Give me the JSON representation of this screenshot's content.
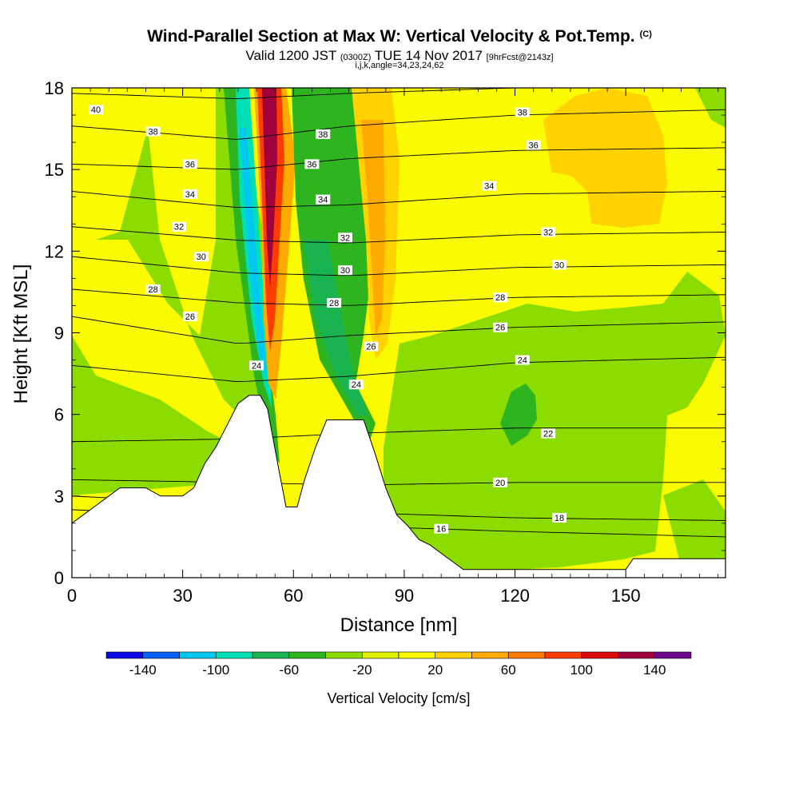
{
  "header": {
    "title": "Wind-Parallel Section at Max W: Vertical Velocity & Pot.Temp.",
    "title_mark": "(C)",
    "subtitle_main": "Valid 1200 JST",
    "subtitle_utc": "(0300Z)",
    "subtitle_date": "TUE 14 Nov 2017",
    "subtitle_fcst": "[9hrFcst@2143z]",
    "indices": "i,j,k,angle=34,23,24,62"
  },
  "chart_data": {
    "type": "heatmap",
    "xlabel": "Distance [nm]",
    "ylabel": "Height [Kft MSL]",
    "xlim": [
      0,
      177
    ],
    "ylim": [
      0,
      18
    ],
    "x_ticks": [
      "0",
      "30",
      "60",
      "90",
      "120",
      "150"
    ],
    "y_ticks": [
      "0",
      "3",
      "6",
      "9",
      "12",
      "15",
      "18"
    ],
    "colorbar": {
      "title": "Vertical Velocity [cm/s]",
      "tick_labels": [
        "-140",
        "-100",
        "-60",
        "-20",
        "20",
        "60",
        "100",
        "140"
      ],
      "bounds": [
        -160,
        -140,
        -120,
        -100,
        -80,
        -60,
        -40,
        -20,
        0,
        20,
        40,
        60,
        80,
        100,
        120,
        140,
        160
      ],
      "colors": [
        "#0a0ae8",
        "#0a5ff5",
        "#00c8f0",
        "#00e0b4",
        "#19b450",
        "#2db41e",
        "#8cdc00",
        "#dcf000",
        "#fafa00",
        "#ffd200",
        "#ffaa00",
        "#ff7800",
        "#ff3c00",
        "#dc0a0a",
        "#a0003c",
        "#6e0a8c"
      ]
    },
    "terrain_profile": [
      [
        0,
        2.0
      ],
      [
        3,
        2.3
      ],
      [
        6,
        2.6
      ],
      [
        10,
        3.0
      ],
      [
        13,
        3.3
      ],
      [
        20,
        3.3
      ],
      [
        24,
        3.0
      ],
      [
        30,
        3.0
      ],
      [
        33,
        3.3
      ],
      [
        36,
        4.2
      ],
      [
        39,
        4.8
      ],
      [
        42,
        5.6
      ],
      [
        45,
        6.4
      ],
      [
        48,
        6.7
      ],
      [
        51,
        6.7
      ],
      [
        53,
        6.2
      ],
      [
        56,
        4.0
      ],
      [
        58,
        2.6
      ],
      [
        61,
        2.6
      ],
      [
        63,
        3.6
      ],
      [
        66,
        4.8
      ],
      [
        69,
        5.8
      ],
      [
        72,
        5.8
      ],
      [
        76,
        5.8
      ],
      [
        79,
        5.8
      ],
      [
        82,
        4.6
      ],
      [
        85,
        3.3
      ],
      [
        88,
        2.3
      ],
      [
        91,
        1.9
      ],
      [
        94,
        1.4
      ],
      [
        97,
        1.2
      ],
      [
        100,
        0.9
      ],
      [
        103,
        0.6
      ],
      [
        106,
        0.3
      ],
      [
        150,
        0.3
      ],
      [
        152,
        0.7
      ],
      [
        177,
        0.7
      ]
    ],
    "theta_contours": [
      {
        "level": 16,
        "heights_kft": [
          2.5,
          2.2,
          1.9,
          1.7,
          1.5
        ]
      },
      {
        "level": 18,
        "heights_kft": [
          3.0,
          2.7,
          2.4,
          2.2,
          2.1
        ]
      },
      {
        "level": 20,
        "heights_kft": [
          3.6,
          3.5,
          3.4,
          3.5,
          3.5
        ]
      },
      {
        "level": 22,
        "heights_kft": [
          5.0,
          5.1,
          5.3,
          5.5,
          5.5
        ]
      },
      {
        "level": 24,
        "heights_kft": [
          7.8,
          7.2,
          7.4,
          7.9,
          8.1
        ]
      },
      {
        "level": 26,
        "heights_kft": [
          9.6,
          8.6,
          8.9,
          9.2,
          9.4
        ]
      },
      {
        "level": 28,
        "heights_kft": [
          10.6,
          10.1,
          10.0,
          10.3,
          10.4
        ]
      },
      {
        "level": 30,
        "heights_kft": [
          11.8,
          11.2,
          11.1,
          11.4,
          11.5
        ]
      },
      {
        "level": 32,
        "heights_kft": [
          12.9,
          12.4,
          12.3,
          12.6,
          12.7
        ]
      },
      {
        "level": 34,
        "heights_kft": [
          14.2,
          13.6,
          13.7,
          14.1,
          14.2
        ]
      },
      {
        "level": 36,
        "heights_kft": [
          15.2,
          15.0,
          15.4,
          15.7,
          15.8
        ]
      },
      {
        "level": 38,
        "heights_kft": [
          16.6,
          16.1,
          16.6,
          17.0,
          17.2
        ]
      },
      {
        "level": 40,
        "heights_kft": [
          17.8,
          17.6,
          17.8,
          18.0,
          18.0
        ]
      }
    ],
    "contour_labels": [
      {
        "text": "40",
        "x": 6.5,
        "y": 17.2
      },
      {
        "text": "38",
        "x": 22,
        "y": 16.4
      },
      {
        "text": "36",
        "x": 32,
        "y": 15.2
      },
      {
        "text": "34",
        "x": 32,
        "y": 14.1
      },
      {
        "text": "32",
        "x": 29,
        "y": 12.9
      },
      {
        "text": "30",
        "x": 35,
        "y": 11.8
      },
      {
        "text": "28",
        "x": 22,
        "y": 10.6
      },
      {
        "text": "26",
        "x": 32,
        "y": 9.6
      },
      {
        "text": "24",
        "x": 50,
        "y": 7.8
      },
      {
        "text": "38",
        "x": 68,
        "y": 16.3
      },
      {
        "text": "36",
        "x": 65,
        "y": 15.2
      },
      {
        "text": "34",
        "x": 68,
        "y": 13.9
      },
      {
        "text": "32",
        "x": 74,
        "y": 12.5
      },
      {
        "text": "30",
        "x": 74,
        "y": 11.3
      },
      {
        "text": "28",
        "x": 71,
        "y": 10.1
      },
      {
        "text": "26",
        "x": 81,
        "y": 8.5
      },
      {
        "text": "24",
        "x": 77,
        "y": 7.1
      },
      {
        "text": "38",
        "x": 122,
        "y": 17.1
      },
      {
        "text": "36",
        "x": 125,
        "y": 15.9
      },
      {
        "text": "34",
        "x": 113,
        "y": 14.4
      },
      {
        "text": "32",
        "x": 129,
        "y": 12.7
      },
      {
        "text": "30",
        "x": 132,
        "y": 11.5
      },
      {
        "text": "28",
        "x": 116,
        "y": 10.3
      },
      {
        "text": "26",
        "x": 116,
        "y": 9.2
      },
      {
        "text": "24",
        "x": 122,
        "y": 8.0
      },
      {
        "text": "22",
        "x": 129,
        "y": 5.3
      },
      {
        "text": "20",
        "x": 116,
        "y": 3.5
      },
      {
        "text": "18",
        "x": 132,
        "y": 2.2
      },
      {
        "text": "16",
        "x": 100,
        "y": 1.8
      }
    ]
  }
}
